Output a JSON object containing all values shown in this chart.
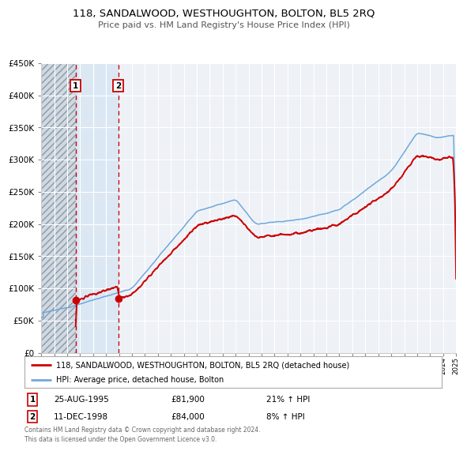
{
  "title": "118, SANDALWOOD, WESTHOUGHTON, BOLTON, BL5 2RQ",
  "subtitle": "Price paid vs. HM Land Registry's House Price Index (HPI)",
  "legend_line1": "118, SANDALWOOD, WESTHOUGHTON, BOLTON, BL5 2RQ (detached house)",
  "legend_line2": "HPI: Average price, detached house, Bolton",
  "annotation1_text": "25-AUG-1995",
  "annotation1_price_str": "£81,900",
  "annotation1_hpi": "21% ↑ HPI",
  "annotation2_text": "11-DEC-1998",
  "annotation2_price_str": "£84,000",
  "annotation2_hpi": "8% ↑ HPI",
  "hpi_color": "#6fa8dc",
  "sale_color": "#cc0000",
  "background_color": "#ffffff",
  "plot_bg_color": "#eef2f7",
  "grid_color": "#ffffff",
  "footer": "Contains HM Land Registry data © Crown copyright and database right 2024.\nThis data is licensed under the Open Government Licence v3.0.",
  "sale1_year": 1995.646,
  "sale1_price": 81900,
  "sale2_year": 1998.94,
  "sale2_price": 84000,
  "ylim": [
    0,
    450000
  ],
  "xlim_start": 1993,
  "xlim_end": 2025
}
